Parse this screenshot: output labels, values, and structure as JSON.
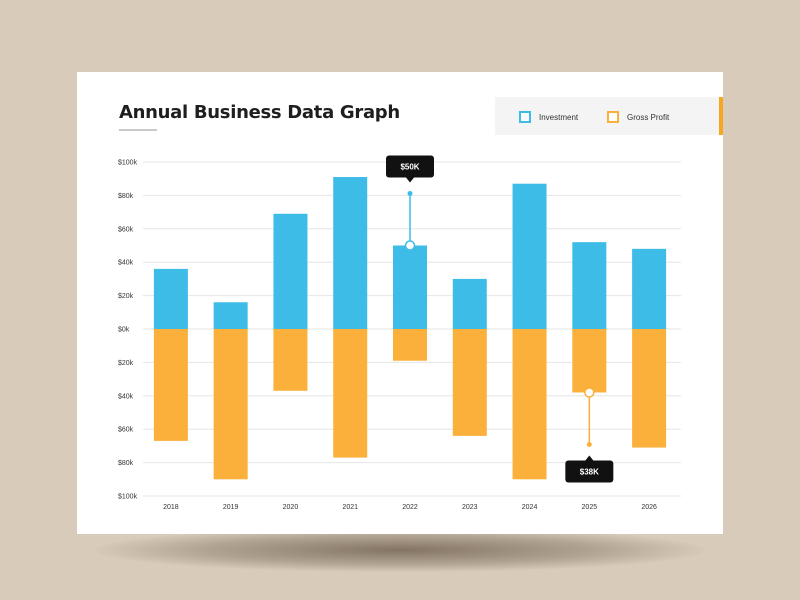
{
  "colors": {
    "investment": "#3dbce8",
    "gross_profit": "#fbb03b",
    "tooltip": "#111111",
    "grid": "#e6e6e6"
  },
  "chart_data": {
    "type": "bar",
    "title": "Annual Business Data Graph",
    "categories": [
      "2018",
      "2019",
      "2020",
      "2021",
      "2022",
      "2023",
      "2024",
      "2025",
      "2026"
    ],
    "series": [
      {
        "name": "Investment",
        "values": [
          36,
          16,
          69,
          91,
          50,
          30,
          87,
          52,
          48
        ]
      },
      {
        "name": "Gross Profit",
        "values": [
          -67,
          -90,
          -37,
          -77,
          -19,
          -64,
          -90,
          -38,
          -71
        ]
      }
    ],
    "ylim": [
      -100,
      100
    ],
    "yticks": [
      "$100k",
      "$80k",
      "$60k",
      "$40k",
      "$20k",
      "$0k",
      "$20k",
      "$40k",
      "$60k",
      "$80k",
      "$100k"
    ],
    "ytick_values": [
      100,
      80,
      60,
      40,
      20,
      0,
      -20,
      -40,
      -60,
      -80,
      -100
    ],
    "legend_position": "top-right",
    "grid": true,
    "annotations": [
      {
        "category": "2022",
        "series": "Investment",
        "value": 50,
        "text": "$50K",
        "placement": "above"
      },
      {
        "category": "2025",
        "series": "Gross Profit",
        "value": -38,
        "text": "$38K",
        "placement": "below"
      }
    ]
  }
}
